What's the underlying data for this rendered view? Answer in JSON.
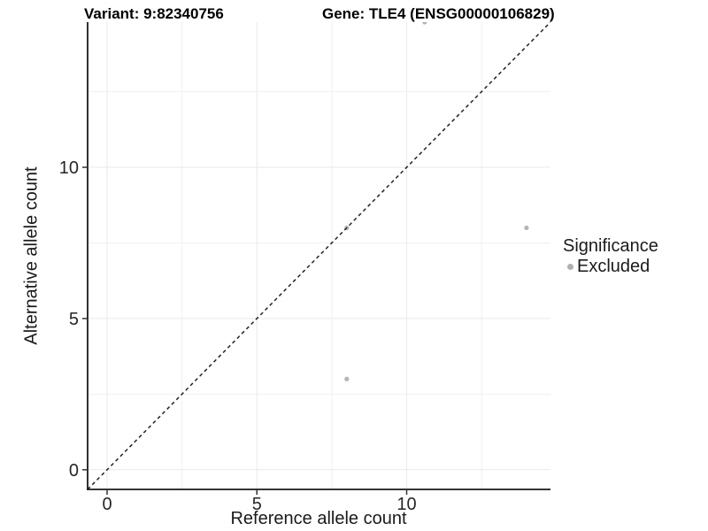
{
  "chart_data": {
    "type": "scatter",
    "titles": {
      "left": "Variant: 9:82340756",
      "right": "Gene: TLE4 (ENSG00000106829)"
    },
    "xlabel": "Reference allele count",
    "ylabel": "Alternative allele count",
    "xlim": [
      -0.65,
      14.8
    ],
    "ylim": [
      -0.65,
      14.8
    ],
    "xticks": [
      0,
      5,
      10
    ],
    "yticks": [
      0,
      5,
      10
    ],
    "minor_ticks": [
      2.5,
      7.5,
      12.5
    ],
    "grid": true,
    "identity_line": {
      "style": "dashed",
      "color": "#222222",
      "slope": 1,
      "intercept": 0
    },
    "series": [
      {
        "name": "Excluded",
        "color": "#b5b5b5",
        "points": [
          [
            8,
            3
          ],
          [
            8,
            8
          ],
          [
            14,
            8
          ],
          [
            10.6,
            14.8
          ]
        ]
      }
    ],
    "legend": {
      "title": "Significance",
      "position": "right",
      "items": [
        {
          "label": "Excluded",
          "color": "#b0b0b0"
        }
      ]
    },
    "panel": {
      "background": "#ffffff",
      "grid_color": "#e9e9e9",
      "minor_grid_color": "#f0f0f0",
      "axis_color": "#1a1a1a",
      "tick_color": "#333333"
    }
  }
}
